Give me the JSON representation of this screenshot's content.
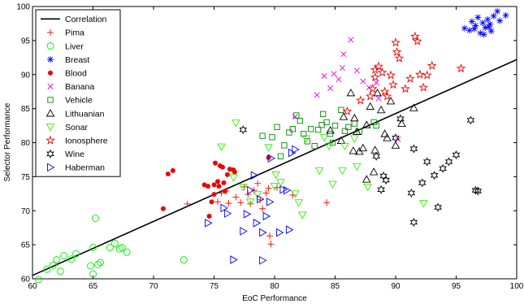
{
  "chart_data": {
    "type": "scatter",
    "title": "",
    "xlabel": "EoC Performance",
    "ylabel": "Selector Performance",
    "xlim": [
      60,
      100
    ],
    "ylim": [
      60,
      100
    ],
    "xticks": [
      60,
      65,
      70,
      75,
      80,
      85,
      90,
      95,
      100
    ],
    "yticks": [
      60,
      65,
      70,
      75,
      80,
      85,
      90,
      95,
      100
    ],
    "grid": false,
    "legend_position": "top-left",
    "correlation_line": {
      "name": "Correlation",
      "x": [
        60,
        100
      ],
      "y": [
        60.5,
        92.2
      ],
      "color": "#000000"
    },
    "series": [
      {
        "name": "Pima",
        "marker": "plus",
        "color": "#ff0000",
        "points": [
          [
            72.8,
            71
          ],
          [
            75.3,
            71.3
          ],
          [
            75.6,
            72.6
          ],
          [
            76,
            72.9
          ],
          [
            76.2,
            71.1
          ],
          [
            76.8,
            72
          ],
          [
            77.2,
            71.2
          ],
          [
            77.5,
            73.5
          ],
          [
            77.8,
            72.4
          ],
          [
            78,
            71
          ],
          [
            78.3,
            73
          ],
          [
            78.6,
            74
          ],
          [
            78.8,
            71.6
          ],
          [
            79,
            70.3
          ],
          [
            79.3,
            72.6
          ],
          [
            79.5,
            73.3
          ],
          [
            79.6,
            66.3
          ],
          [
            79.7,
            65.1
          ],
          [
            80.2,
            73.4
          ],
          [
            81.5,
            72.3
          ],
          [
            84.3,
            71.2
          ]
        ]
      },
      {
        "name": "Liver",
        "marker": "circle",
        "color": "#00ee00",
        "points": [
          [
            60.5,
            59.9
          ],
          [
            61.2,
            61.4
          ],
          [
            61.7,
            62
          ],
          [
            62,
            62.8
          ],
          [
            62.3,
            61.1
          ],
          [
            62.6,
            63.4
          ],
          [
            63.2,
            62.9
          ],
          [
            63.6,
            63.7
          ],
          [
            64.8,
            61.9
          ],
          [
            65,
            60.7
          ],
          [
            65,
            64.6
          ],
          [
            65.2,
            68.9
          ],
          [
            65.4,
            62.1
          ],
          [
            65.6,
            62.4
          ],
          [
            66.4,
            64.6
          ],
          [
            66.8,
            65.2
          ],
          [
            67.2,
            64.4
          ],
          [
            67.4,
            64.6
          ],
          [
            67.8,
            63.9
          ],
          [
            72.5,
            62.8
          ]
        ]
      },
      {
        "name": "Breast",
        "marker": "asterisk",
        "color": "#0000ff",
        "points": [
          [
            95.7,
            96.8
          ],
          [
            96.1,
            96.5
          ],
          [
            96.3,
            97.8
          ],
          [
            96.6,
            97.2
          ],
          [
            96.8,
            98.4
          ],
          [
            97,
            96.1
          ],
          [
            97.2,
            97.6
          ],
          [
            97.4,
            96.9
          ],
          [
            97.6,
            98.1
          ],
          [
            97.8,
            97.4
          ],
          [
            97.9,
            96.4
          ],
          [
            98.1,
            98.6
          ],
          [
            98.4,
            99.3
          ],
          [
            98.6,
            97.9
          ],
          [
            99.1,
            98.7
          ],
          [
            96.5,
            96.7
          ],
          [
            97.3,
            95.9
          ],
          [
            97.7,
            97.0
          ]
        ]
      },
      {
        "name": "Blood",
        "marker": "dot",
        "color": "#ee0000",
        "points": [
          [
            70.8,
            70.3
          ],
          [
            71.2,
            75.4
          ],
          [
            71.6,
            75.9
          ],
          [
            74.2,
            73.8
          ],
          [
            74.5,
            73.6
          ],
          [
            74.6,
            69.2
          ],
          [
            74.8,
            71.3
          ],
          [
            75,
            72.4
          ],
          [
            75,
            73.8
          ],
          [
            75.1,
            77
          ],
          [
            75.3,
            74.3
          ],
          [
            75.4,
            73.6
          ],
          [
            75.5,
            76.6
          ],
          [
            75.7,
            76.4
          ],
          [
            75.8,
            74.1
          ],
          [
            75.9,
            72.9
          ],
          [
            76.1,
            75.3
          ],
          [
            76.3,
            76.1
          ],
          [
            76.6,
            76
          ],
          [
            76.7,
            75.7
          ],
          [
            79.5,
            77.8
          ]
        ]
      },
      {
        "name": "Banana",
        "marker": "x",
        "color": "#ee00ee",
        "points": [
          [
            81.7,
            83.8
          ],
          [
            83.5,
            87
          ],
          [
            84.1,
            89.8
          ],
          [
            84.6,
            88
          ],
          [
            84.9,
            90.1
          ],
          [
            85.3,
            89.3
          ],
          [
            85.6,
            91
          ],
          [
            85.7,
            93
          ],
          [
            86.3,
            95.1
          ],
          [
            86.8,
            90.6
          ],
          [
            87.3,
            89
          ],
          [
            87.8,
            88.1
          ],
          [
            88.4,
            88.8
          ],
          [
            88.6,
            86.5
          ],
          [
            90.2,
            80.5
          ]
        ]
      },
      {
        "name": "Vehicle",
        "marker": "square",
        "color": "#008800",
        "points": [
          [
            79,
            81
          ],
          [
            79.8,
            80.8
          ],
          [
            80.2,
            82.3
          ],
          [
            80.5,
            78
          ],
          [
            80.8,
            79.6
          ],
          [
            81.2,
            81.5
          ],
          [
            81.5,
            82
          ],
          [
            81.8,
            84
          ],
          [
            82.1,
            83.2
          ],
          [
            82.4,
            81.3
          ],
          [
            82.7,
            80.2
          ],
          [
            83,
            82
          ],
          [
            83.3,
            79.5
          ],
          [
            83.6,
            81.9
          ],
          [
            84,
            84.2
          ],
          [
            84.3,
            83
          ],
          [
            84.6,
            81.3
          ],
          [
            84.8,
            80
          ],
          [
            85,
            82.5
          ],
          [
            85.5,
            84.8
          ],
          [
            86.1,
            82.3
          ],
          [
            86.6,
            82.8
          ],
          [
            87,
            81.6
          ],
          [
            88.2,
            83
          ],
          [
            88.4,
            82.5
          ],
          [
            85.8,
            81.7
          ],
          [
            83.9,
            82.6
          ]
        ]
      },
      {
        "name": "Lithuanian",
        "marker": "triangle-up",
        "color": "#000000",
        "points": [
          [
            84.6,
            81.8
          ],
          [
            85.5,
            80.3
          ],
          [
            86.3,
            87.3
          ],
          [
            86.6,
            83.6
          ],
          [
            86.8,
            81.6
          ],
          [
            87,
            78.7
          ],
          [
            87.3,
            79.2
          ],
          [
            87.6,
            82.6
          ],
          [
            87.9,
            85.3
          ],
          [
            88.3,
            78.9
          ],
          [
            88.5,
            87.3
          ],
          [
            88.8,
            84.8
          ],
          [
            89.1,
            81.3
          ],
          [
            89.3,
            80.7
          ],
          [
            89.6,
            86.1
          ],
          [
            90,
            79.6
          ],
          [
            90.5,
            82.8
          ],
          [
            91.5,
            85.1
          ],
          [
            87.6,
            74.6
          ],
          [
            88.2,
            75.7
          ],
          [
            85.7,
            83.8
          ],
          [
            86.5,
            78.8
          ]
        ]
      },
      {
        "name": "Sonar",
        "marker": "triangle-down",
        "color": "#33ee00",
        "points": [
          [
            75.6,
            79.4
          ],
          [
            76.6,
            74.9
          ],
          [
            77.4,
            73.5
          ],
          [
            78,
            71.3
          ],
          [
            78.6,
            72.4
          ],
          [
            79.5,
            79.3
          ],
          [
            80,
            73.6
          ],
          [
            80.1,
            75.3
          ],
          [
            80.5,
            74.2
          ],
          [
            81.7,
            72.5
          ],
          [
            82,
            71.2
          ],
          [
            82.3,
            69.4
          ],
          [
            83.7,
            75.9
          ],
          [
            84.5,
            79.5
          ],
          [
            84.8,
            73.9
          ],
          [
            85.6,
            75.9
          ],
          [
            86.8,
            76.5
          ],
          [
            87.7,
            73.5
          ],
          [
            92.3,
            71.1
          ],
          [
            76.8,
            82.9
          ],
          [
            82.6,
            80.6
          ],
          [
            85.8,
            79.5
          ],
          [
            86.6,
            80.6
          ],
          [
            84.1,
            80.8
          ]
        ]
      },
      {
        "name": "Ionosphere",
        "marker": "pentagram",
        "color": "#ee0000",
        "points": [
          [
            86,
            84.6
          ],
          [
            87.1,
            86.2
          ],
          [
            87.9,
            86.8
          ],
          [
            88.1,
            87.9
          ],
          [
            88.3,
            89.6
          ],
          [
            88.6,
            91.2
          ],
          [
            88.9,
            90.3
          ],
          [
            89.1,
            87.5
          ],
          [
            89.3,
            86.8
          ],
          [
            89.6,
            89.9
          ],
          [
            89.8,
            88.5
          ],
          [
            90,
            94.7
          ],
          [
            90.1,
            93.3
          ],
          [
            90.3,
            92.4
          ],
          [
            90.8,
            87.9
          ],
          [
            91.2,
            89.4
          ],
          [
            91.6,
            95.6
          ],
          [
            91.8,
            94.9
          ],
          [
            92,
            90
          ],
          [
            92.3,
            88.1
          ],
          [
            92.6,
            89.9
          ],
          [
            93,
            91.3
          ],
          [
            95.4,
            90.9
          ],
          [
            88.3,
            90.7
          ]
        ]
      },
      {
        "name": "Wine",
        "marker": "hexagram",
        "color": "#000000",
        "points": [
          [
            77.4,
            81.9
          ],
          [
            88.4,
            78
          ],
          [
            88.8,
            73.1
          ],
          [
            89,
            75.1
          ],
          [
            89.2,
            74.5
          ],
          [
            90,
            80.7
          ],
          [
            90.4,
            83.5
          ],
          [
            91.3,
            72.6
          ],
          [
            91.5,
            68.3
          ],
          [
            92.2,
            74.1
          ],
          [
            92.6,
            77.2
          ],
          [
            93.2,
            75.2
          ],
          [
            93.5,
            70.5
          ],
          [
            93.9,
            76.2
          ],
          [
            94.4,
            77.2
          ],
          [
            95,
            78.2
          ],
          [
            96.2,
            83.3
          ],
          [
            96.6,
            73
          ],
          [
            96.8,
            72.9
          ],
          [
            91.5,
            79.1
          ]
        ]
      },
      {
        "name": "Haberman",
        "marker": "triangle-right",
        "color": "#0000ff",
        "points": [
          [
            74.5,
            68.2
          ],
          [
            75.8,
            70.4
          ],
          [
            76.1,
            69.6
          ],
          [
            76.6,
            62.8
          ],
          [
            77.4,
            67
          ],
          [
            77.7,
            69.5
          ],
          [
            78,
            73
          ],
          [
            78.3,
            75.2
          ],
          [
            78.5,
            68.2
          ],
          [
            78.8,
            71.7
          ],
          [
            79,
            66.8
          ],
          [
            79,
            62.7
          ],
          [
            79.3,
            69.2
          ],
          [
            79.6,
            71.3
          ],
          [
            79.7,
            77.7
          ],
          [
            80.4,
            66.8
          ],
          [
            80.7,
            73.1
          ],
          [
            81,
            73
          ],
          [
            81.2,
            67.2
          ],
          [
            81.4,
            78.5
          ],
          [
            81.7,
            79
          ]
        ]
      }
    ]
  }
}
